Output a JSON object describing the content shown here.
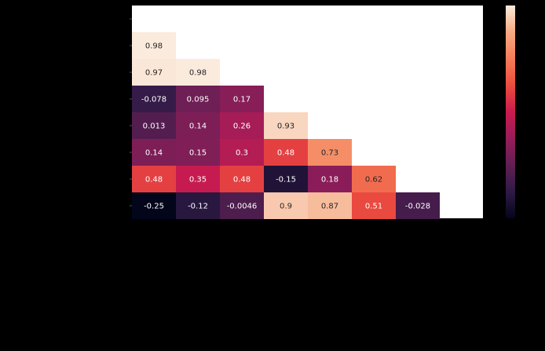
{
  "chart_data": {
    "type": "heatmap",
    "layout": "lower-triangle",
    "title": "",
    "xlabel": "",
    "ylabel": "",
    "colormap": "rocket",
    "colorbar": {
      "position": "right",
      "ticks_visible": false
    },
    "value_range": [
      -0.25,
      0.98
    ],
    "masked_color": "#ffffff",
    "background": "#000000",
    "rows": [
      [],
      [
        0.98
      ],
      [
        0.97,
        0.98
      ],
      [
        -0.078,
        0.095,
        0.17
      ],
      [
        0.013,
        0.14,
        0.26,
        0.93
      ],
      [
        0.14,
        0.15,
        0.3,
        0.48,
        0.73
      ],
      [
        0.48,
        0.35,
        0.48,
        -0.15,
        0.18,
        0.62
      ],
      [
        -0.25,
        -0.12,
        -0.0046,
        0.9,
        0.87,
        0.51,
        -0.028
      ]
    ],
    "labels": [
      [],
      [
        "0.98"
      ],
      [
        "0.97",
        "0.98"
      ],
      [
        "-0.078",
        "0.095",
        "0.17"
      ],
      [
        "0.013",
        "0.14",
        "0.26",
        "0.93"
      ],
      [
        "0.14",
        "0.15",
        "0.3",
        "0.48",
        "0.73"
      ],
      [
        "0.48",
        "0.35",
        "0.48",
        "-0.15",
        "0.18",
        "0.62"
      ],
      [
        "-0.25",
        "-0.12",
        "-0.0046",
        "0.9",
        "0.87",
        "0.51",
        "-0.028"
      ]
    ]
  }
}
